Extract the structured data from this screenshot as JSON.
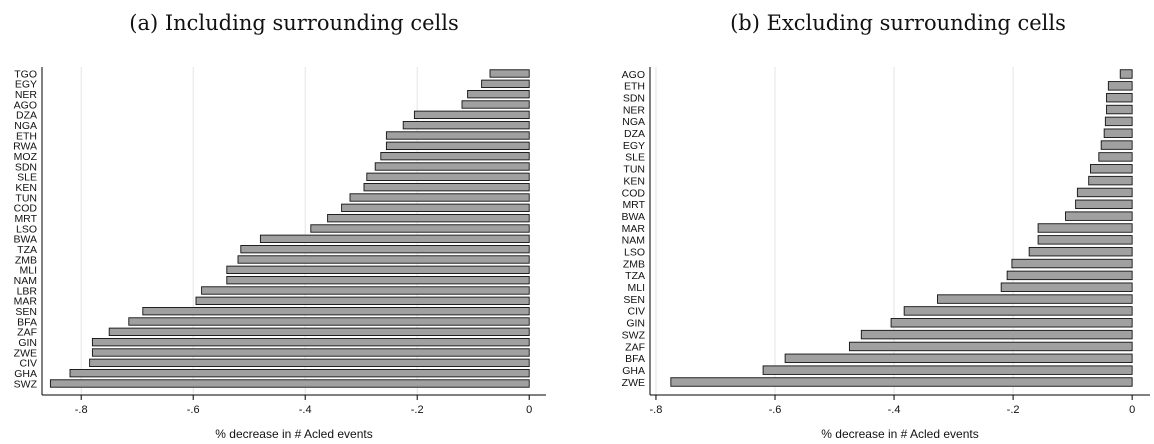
{
  "chart_data": [
    {
      "type": "bar",
      "orientation": "horizontal",
      "title": "(a) Including surrounding cells",
      "xlabel": "% decrease in # Acled events",
      "ylabel": "",
      "xlim": [
        -0.87,
        0.03
      ],
      "xticks": [
        -0.8,
        -0.6,
        -0.4,
        -0.2,
        0
      ],
      "xtick_labels": [
        "-.8",
        "-.6",
        "-.4",
        "-.2",
        "0"
      ],
      "grid": "vertical",
      "bar_color": "#a0a0a0",
      "categories": [
        "TGO",
        "EGY",
        "NER",
        "AGO",
        "DZA",
        "NGA",
        "ETH",
        "RWA",
        "MOZ",
        "SDN",
        "SLE",
        "KEN",
        "TUN",
        "COD",
        "MRT",
        "LSO",
        "BWA",
        "TZA",
        "ZMB",
        "MLI",
        "NAM",
        "LBR",
        "MAR",
        "SEN",
        "BFA",
        "ZAF",
        "GIN",
        "ZWE",
        "CIV",
        "GHA",
        "SWZ"
      ],
      "values": [
        -0.07,
        -0.085,
        -0.11,
        -0.12,
        -0.205,
        -0.225,
        -0.255,
        -0.255,
        -0.265,
        -0.275,
        -0.29,
        -0.295,
        -0.32,
        -0.335,
        -0.36,
        -0.39,
        -0.48,
        -0.515,
        -0.52,
        -0.54,
        -0.54,
        -0.585,
        -0.595,
        -0.69,
        -0.715,
        -0.75,
        -0.78,
        -0.78,
        -0.785,
        -0.82,
        -0.855
      ]
    },
    {
      "type": "bar",
      "orientation": "horizontal",
      "title": "(b) Excluding surrounding cells",
      "xlabel": "% decrease in # Acled events",
      "ylabel": "",
      "xlim": [
        -0.81,
        0.03
      ],
      "xticks": [
        -0.8,
        -0.6,
        -0.4,
        -0.2,
        0
      ],
      "xtick_labels": [
        "-.8",
        "-.6",
        "-.4",
        "-.2",
        "0"
      ],
      "grid": "vertical",
      "bar_color": "#a0a0a0",
      "categories": [
        "AGO",
        "ETH",
        "SDN",
        "NER",
        "NGA",
        "DZA",
        "EGY",
        "SLE",
        "TUN",
        "KEN",
        "COD",
        "MRT",
        "BWA",
        "MAR",
        "NAM",
        "LSO",
        "ZMB",
        "TZA",
        "MLI",
        "SEN",
        "CIV",
        "GIN",
        "SWZ",
        "ZAF",
        "BFA",
        "GHA",
        "ZWE"
      ],
      "values": [
        -0.02,
        -0.04,
        -0.043,
        -0.043,
        -0.045,
        -0.047,
        -0.052,
        -0.056,
        -0.07,
        -0.073,
        -0.092,
        -0.095,
        -0.112,
        -0.158,
        -0.158,
        -0.173,
        -0.202,
        -0.21,
        -0.22,
        -0.327,
        -0.383,
        -0.405,
        -0.455,
        -0.475,
        -0.583,
        -0.62,
        -0.775
      ]
    }
  ]
}
